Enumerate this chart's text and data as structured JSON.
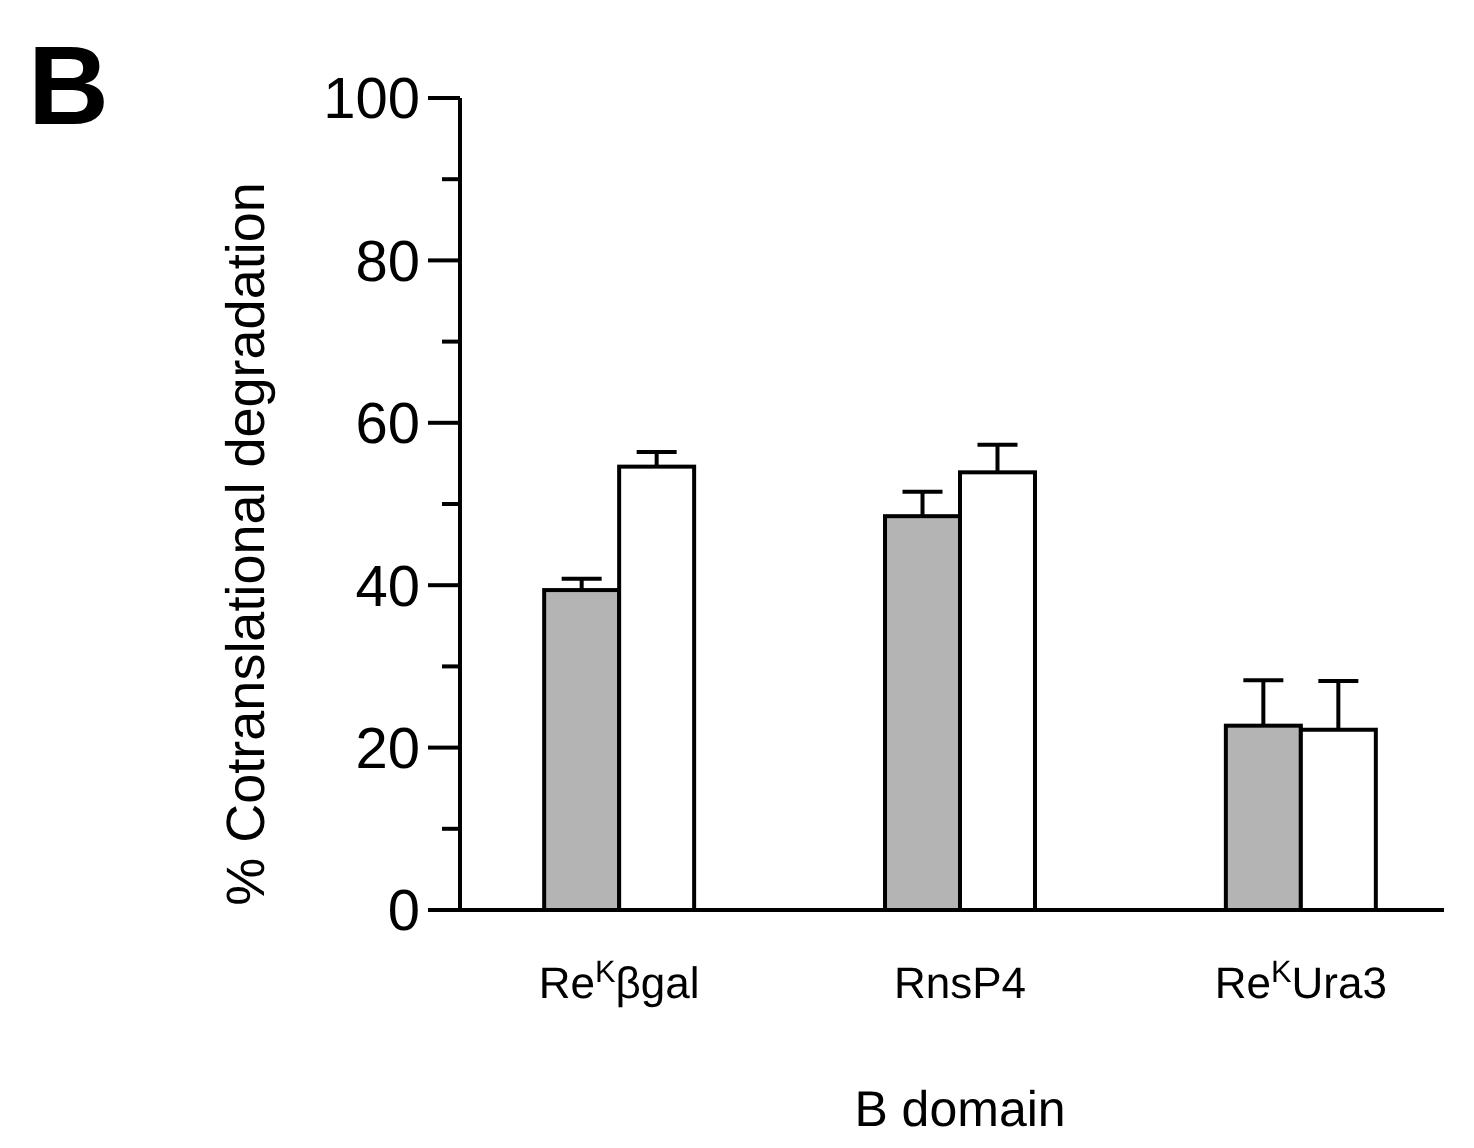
{
  "chart_data": {
    "type": "bar",
    "xlabel": "B domain",
    "ylabel": "% Cotranslational degradation",
    "annotations": [
      "B"
    ],
    "categories": [
      "Re$^{K}$βgal",
      "RnsP4",
      "Re$^{K}$Ura3"
    ],
    "series": [
      {
        "color": "#b4b4b4",
        "values": [
          39.4,
          48.5,
          22.7
        ],
        "errors": [
          1.4,
          3,
          5.6
        ]
      },
      {
        "color": "#ffffff",
        "values": [
          54.6,
          53.9,
          22.2
        ],
        "errors": [
          1.8,
          3.4,
          6
        ]
      }
    ],
    "ylim": [
      0,
      100
    ],
    "yticks": [
      0,
      {
        "value": 10,
        "label": null
      },
      20,
      {
        "value": 30,
        "label": null
      },
      40,
      {
        "value": 50,
        "label": null
      },
      60,
      {
        "value": 70,
        "label": null
      },
      80,
      {
        "value": 90,
        "label": null
      },
      100
    ],
    "grid": false
  }
}
